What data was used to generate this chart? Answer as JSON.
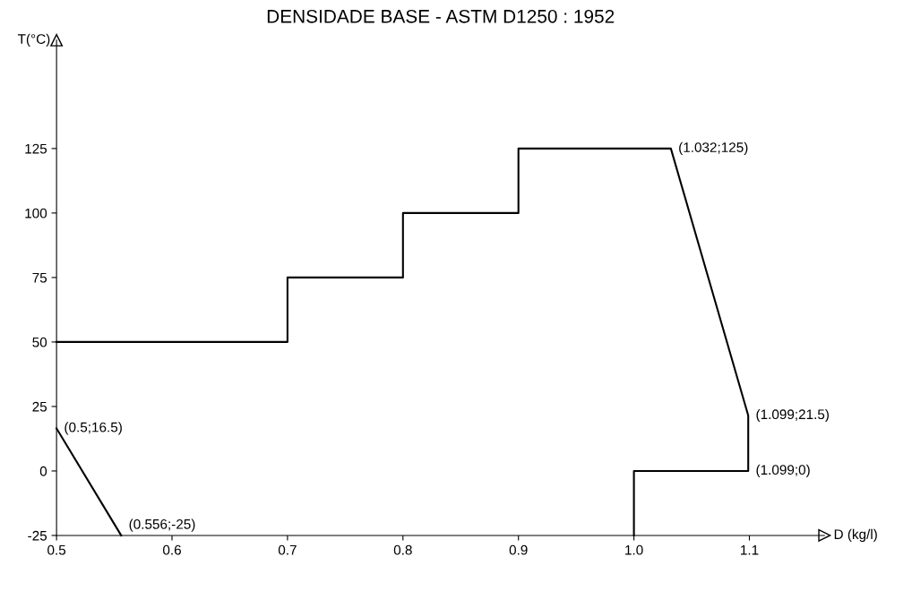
{
  "chart_data": {
    "type": "line",
    "title": "DENSIDADE BASE - ASTM D1250 : 1952",
    "xlabel": "D (kg/l)",
    "ylabel": "T(°C)",
    "series": [
      {
        "color": "#000000",
        "x": [
          0.5,
          0.7,
          0.7,
          0.8,
          0.8,
          0.9,
          0.9,
          1.032,
          1.099,
          1.099,
          1.0,
          1.0
        ],
        "values": [
          50,
          50,
          75,
          75,
          100,
          100,
          125,
          125,
          21.5,
          0,
          0,
          -25
        ]
      },
      {
        "color": "#000000",
        "x": [
          0.5,
          0.556
        ],
        "values": [
          16.5,
          -25
        ]
      }
    ],
    "xlim": [
      0.5,
      1.165
    ],
    "ylim": [
      -25,
      167
    ],
    "xticks": [
      0.5,
      0.6,
      0.7,
      0.8,
      0.9,
      {
        "value": 1.0,
        "label": "1.0"
      },
      1.1
    ],
    "yticks": [
      -25,
      0,
      25,
      50,
      75,
      100,
      125
    ],
    "grid": false,
    "annotations": [
      {
        "text": "(0.5;16.5)",
        "x": 0.5,
        "y": 16.5
      },
      {
        "text": "(0.556;-25)",
        "x": 0.556,
        "y": -25
      },
      {
        "text": "(1.032;125)",
        "x": 1.032,
        "y": 125
      },
      {
        "text": "(1.099;21.5)",
        "x": 1.099,
        "y": 21.5
      },
      {
        "text": "(1.099;0)",
        "x": 1.099,
        "y": 0
      }
    ]
  }
}
